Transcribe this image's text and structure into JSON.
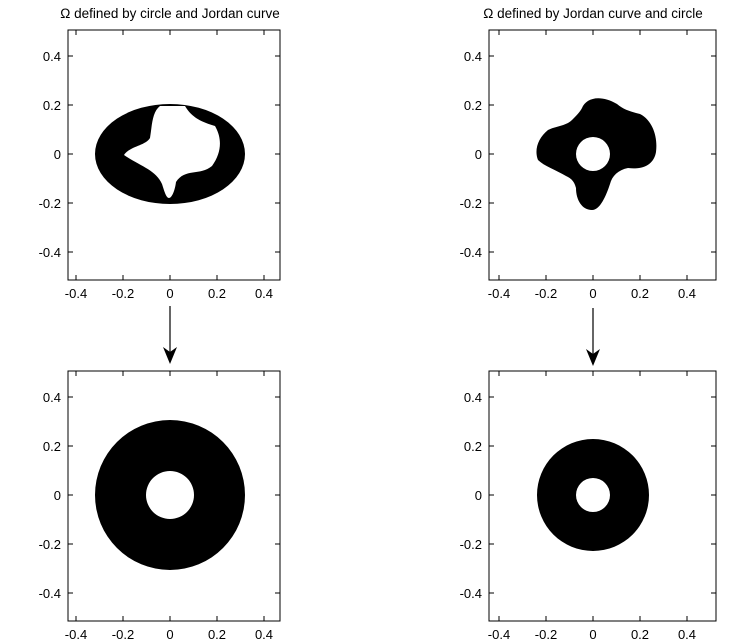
{
  "panels": [
    {
      "title_symbol": "Ω",
      "title_rest": " defined by circle and Jordan curve",
      "xticks": [
        "-0.4",
        "-0.2",
        "0",
        "0.2",
        "0.4"
      ],
      "yticks": [
        "0.4",
        "0.2",
        "0",
        "-0.2",
        "-0.4"
      ],
      "shape": "circle with Jordan-curve hole"
    },
    {
      "title_symbol": "Ω",
      "title_rest": " defined by Jordan curve and circle",
      "xticks": [
        "-0.4",
        "-0.2",
        "0",
        "0.2",
        "0.4"
      ],
      "yticks": [
        "0.4",
        "0.2",
        "0",
        "-0.2",
        "-0.4"
      ],
      "shape": "Jordan curve with circular hole"
    },
    {
      "xticks": [
        "-0.4",
        "-0.2",
        "0",
        "0.2",
        "0.4"
      ],
      "yticks": [
        "0.4",
        "0.2",
        "0",
        "-0.2",
        "-0.4"
      ],
      "shape": "annulus r 0.1 to 0.3"
    },
    {
      "xticks": [
        "-0.4",
        "-0.2",
        "0",
        "0.2",
        "0.4"
      ],
      "yticks": [
        "0.4",
        "0.2",
        "0",
        "-0.2",
        "-0.4"
      ],
      "shape": "annulus r 0.1 to 0.22"
    }
  ],
  "colors": {
    "fill": "#000000",
    "background": "#ffffff",
    "axes": "#000000"
  }
}
